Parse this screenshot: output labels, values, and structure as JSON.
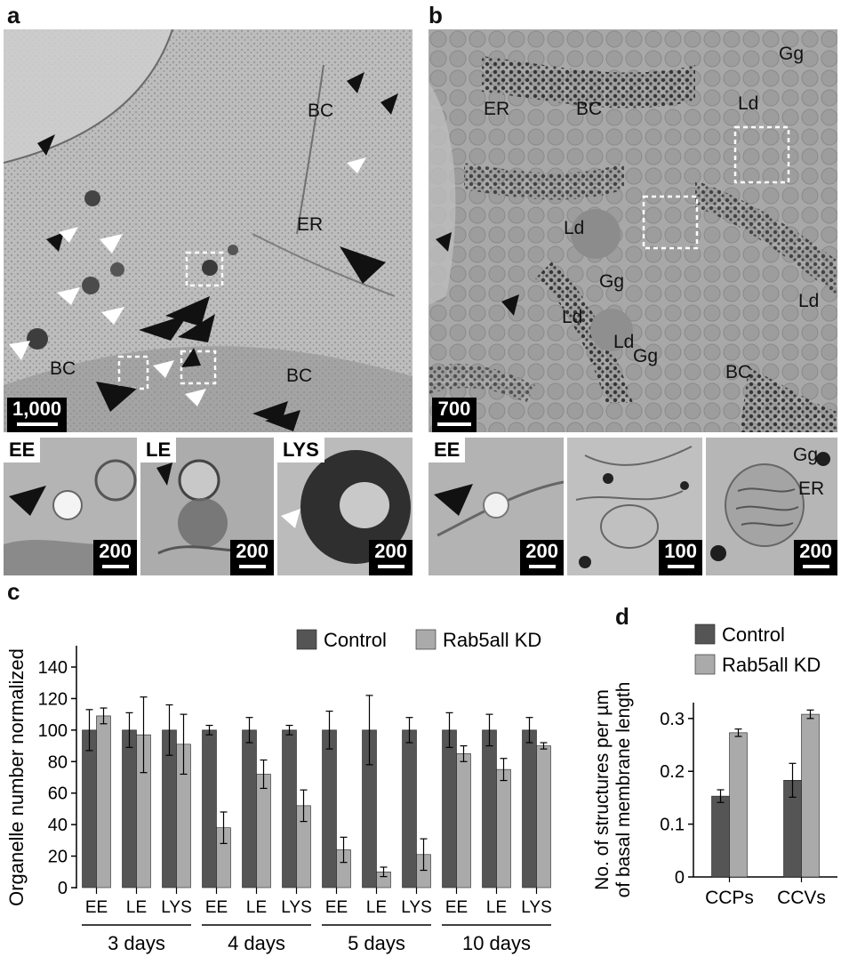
{
  "panels": {
    "a": {
      "letter": "a",
      "scale_label": "1,000",
      "labels": [
        "BC",
        "ER",
        "BC",
        "BC"
      ],
      "insets": [
        {
          "tag": "EE",
          "scale": "200"
        },
        {
          "tag": "LE",
          "scale": "200"
        },
        {
          "tag": "LYS",
          "scale": "200"
        }
      ]
    },
    "b": {
      "letter": "b",
      "scale_label": "700",
      "labels": [
        "Gg",
        "ER",
        "BC",
        "Ld",
        "Ld",
        "Gg",
        "Ld",
        "Ld",
        "Ld",
        "Gg",
        "BC"
      ],
      "insets": [
        {
          "tag": "EE",
          "scale": "200"
        },
        {
          "tag": "",
          "scale": "100"
        },
        {
          "tag": "",
          "scale": "200",
          "labels": [
            "Gg",
            "ER"
          ]
        }
      ]
    },
    "c": {
      "letter": "c"
    },
    "d": {
      "letter": "d"
    }
  },
  "colors": {
    "control": "#555555",
    "rab5": "#aaaaaa",
    "em_a": "#b9b9b9",
    "em_b": "#a9a9a9"
  },
  "chart_data": [
    {
      "id": "c",
      "type": "bar",
      "ylabel": "Organelle number normalized",
      "ylim": [
        0,
        140
      ],
      "yticks": [
        0,
        20,
        40,
        60,
        80,
        100,
        120,
        140
      ],
      "categories": [
        "EE",
        "LE",
        "LYS",
        "EE",
        "LE",
        "LYS",
        "EE",
        "LE",
        "LYS",
        "EE",
        "LE",
        "LYS"
      ],
      "groups": [
        "3 days",
        "4 days",
        "5 days",
        "10 days"
      ],
      "legend_position": "top-right",
      "series": [
        {
          "name": "Control",
          "values": [
            100,
            100,
            100,
            100,
            100,
            100,
            100,
            100,
            100,
            100,
            100,
            100
          ],
          "errors": [
            13,
            11,
            16,
            3,
            8,
            3,
            12,
            22,
            8,
            11,
            10,
            8
          ]
        },
        {
          "name": "Rab5all KD",
          "values": [
            109,
            97,
            91,
            38,
            72,
            52,
            24,
            10,
            21,
            85,
            75,
            90
          ],
          "errors": [
            5,
            24,
            19,
            10,
            9,
            10,
            8,
            3,
            10,
            5,
            7,
            2
          ]
        }
      ]
    },
    {
      "id": "d",
      "type": "bar",
      "ylabel": "No. of structures per µm of basal membrane length",
      "ylim": [
        0,
        0.33
      ],
      "yticks": [
        0,
        0.1,
        0.2,
        0.3
      ],
      "ytick_labels": [
        "0",
        "0.1",
        "0.2",
        "0.3"
      ],
      "categories": [
        "CCPs",
        "CCVs"
      ],
      "legend_position": "top",
      "series": [
        {
          "name": "Control",
          "values": [
            0.153,
            0.183
          ],
          "errors": [
            0.012,
            0.032
          ]
        },
        {
          "name": "Rab5all KD",
          "values": [
            0.273,
            0.308
          ],
          "errors": [
            0.007,
            0.008
          ]
        }
      ]
    }
  ]
}
